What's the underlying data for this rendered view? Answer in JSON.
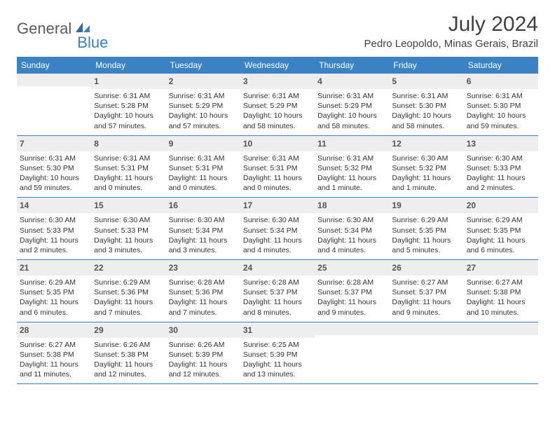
{
  "brand": {
    "general": "General",
    "blue": "Blue"
  },
  "title": "July 2024",
  "location": "Pedro Leopoldo, Minas Gerais, Brazil",
  "colors": {
    "accent": "#3b82c4",
    "text": "#404040",
    "cellbg": "#eeeeee"
  },
  "weekdays": [
    "Sunday",
    "Monday",
    "Tuesday",
    "Wednesday",
    "Thursday",
    "Friday",
    "Saturday"
  ],
  "layout": {
    "first_weekday_index": 1,
    "days_in_month": 31
  },
  "days": {
    "1": {
      "sunrise": "Sunrise: 6:31 AM",
      "sunset": "Sunset: 5:28 PM",
      "day1": "Daylight: 10 hours",
      "day2": "and 57 minutes."
    },
    "2": {
      "sunrise": "Sunrise: 6:31 AM",
      "sunset": "Sunset: 5:29 PM",
      "day1": "Daylight: 10 hours",
      "day2": "and 57 minutes."
    },
    "3": {
      "sunrise": "Sunrise: 6:31 AM",
      "sunset": "Sunset: 5:29 PM",
      "day1": "Daylight: 10 hours",
      "day2": "and 58 minutes."
    },
    "4": {
      "sunrise": "Sunrise: 6:31 AM",
      "sunset": "Sunset: 5:29 PM",
      "day1": "Daylight: 10 hours",
      "day2": "and 58 minutes."
    },
    "5": {
      "sunrise": "Sunrise: 6:31 AM",
      "sunset": "Sunset: 5:30 PM",
      "day1": "Daylight: 10 hours",
      "day2": "and 58 minutes."
    },
    "6": {
      "sunrise": "Sunrise: 6:31 AM",
      "sunset": "Sunset: 5:30 PM",
      "day1": "Daylight: 10 hours",
      "day2": "and 59 minutes."
    },
    "7": {
      "sunrise": "Sunrise: 6:31 AM",
      "sunset": "Sunset: 5:30 PM",
      "day1": "Daylight: 10 hours",
      "day2": "and 59 minutes."
    },
    "8": {
      "sunrise": "Sunrise: 6:31 AM",
      "sunset": "Sunset: 5:31 PM",
      "day1": "Daylight: 11 hours",
      "day2": "and 0 minutes."
    },
    "9": {
      "sunrise": "Sunrise: 6:31 AM",
      "sunset": "Sunset: 5:31 PM",
      "day1": "Daylight: 11 hours",
      "day2": "and 0 minutes."
    },
    "10": {
      "sunrise": "Sunrise: 6:31 AM",
      "sunset": "Sunset: 5:31 PM",
      "day1": "Daylight: 11 hours",
      "day2": "and 0 minutes."
    },
    "11": {
      "sunrise": "Sunrise: 6:31 AM",
      "sunset": "Sunset: 5:32 PM",
      "day1": "Daylight: 11 hours",
      "day2": "and 1 minute."
    },
    "12": {
      "sunrise": "Sunrise: 6:30 AM",
      "sunset": "Sunset: 5:32 PM",
      "day1": "Daylight: 11 hours",
      "day2": "and 1 minute."
    },
    "13": {
      "sunrise": "Sunrise: 6:30 AM",
      "sunset": "Sunset: 5:33 PM",
      "day1": "Daylight: 11 hours",
      "day2": "and 2 minutes."
    },
    "14": {
      "sunrise": "Sunrise: 6:30 AM",
      "sunset": "Sunset: 5:33 PM",
      "day1": "Daylight: 11 hours",
      "day2": "and 2 minutes."
    },
    "15": {
      "sunrise": "Sunrise: 6:30 AM",
      "sunset": "Sunset: 5:33 PM",
      "day1": "Daylight: 11 hours",
      "day2": "and 3 minutes."
    },
    "16": {
      "sunrise": "Sunrise: 6:30 AM",
      "sunset": "Sunset: 5:34 PM",
      "day1": "Daylight: 11 hours",
      "day2": "and 3 minutes."
    },
    "17": {
      "sunrise": "Sunrise: 6:30 AM",
      "sunset": "Sunset: 5:34 PM",
      "day1": "Daylight: 11 hours",
      "day2": "and 4 minutes."
    },
    "18": {
      "sunrise": "Sunrise: 6:30 AM",
      "sunset": "Sunset: 5:34 PM",
      "day1": "Daylight: 11 hours",
      "day2": "and 4 minutes."
    },
    "19": {
      "sunrise": "Sunrise: 6:29 AM",
      "sunset": "Sunset: 5:35 PM",
      "day1": "Daylight: 11 hours",
      "day2": "and 5 minutes."
    },
    "20": {
      "sunrise": "Sunrise: 6:29 AM",
      "sunset": "Sunset: 5:35 PM",
      "day1": "Daylight: 11 hours",
      "day2": "and 6 minutes."
    },
    "21": {
      "sunrise": "Sunrise: 6:29 AM",
      "sunset": "Sunset: 5:35 PM",
      "day1": "Daylight: 11 hours",
      "day2": "and 6 minutes."
    },
    "22": {
      "sunrise": "Sunrise: 6:29 AM",
      "sunset": "Sunset: 5:36 PM",
      "day1": "Daylight: 11 hours",
      "day2": "and 7 minutes."
    },
    "23": {
      "sunrise": "Sunrise: 6:28 AM",
      "sunset": "Sunset: 5:36 PM",
      "day1": "Daylight: 11 hours",
      "day2": "and 7 minutes."
    },
    "24": {
      "sunrise": "Sunrise: 6:28 AM",
      "sunset": "Sunset: 5:37 PM",
      "day1": "Daylight: 11 hours",
      "day2": "and 8 minutes."
    },
    "25": {
      "sunrise": "Sunrise: 6:28 AM",
      "sunset": "Sunset: 5:37 PM",
      "day1": "Daylight: 11 hours",
      "day2": "and 9 minutes."
    },
    "26": {
      "sunrise": "Sunrise: 6:27 AM",
      "sunset": "Sunset: 5:37 PM",
      "day1": "Daylight: 11 hours",
      "day2": "and 9 minutes."
    },
    "27": {
      "sunrise": "Sunrise: 6:27 AM",
      "sunset": "Sunset: 5:38 PM",
      "day1": "Daylight: 11 hours",
      "day2": "and 10 minutes."
    },
    "28": {
      "sunrise": "Sunrise: 6:27 AM",
      "sunset": "Sunset: 5:38 PM",
      "day1": "Daylight: 11 hours",
      "day2": "and 11 minutes."
    },
    "29": {
      "sunrise": "Sunrise: 6:26 AM",
      "sunset": "Sunset: 5:38 PM",
      "day1": "Daylight: 11 hours",
      "day2": "and 12 minutes."
    },
    "30": {
      "sunrise": "Sunrise: 6:26 AM",
      "sunset": "Sunset: 5:39 PM",
      "day1": "Daylight: 11 hours",
      "day2": "and 12 minutes."
    },
    "31": {
      "sunrise": "Sunrise: 6:25 AM",
      "sunset": "Sunset: 5:39 PM",
      "day1": "Daylight: 11 hours",
      "day2": "and 13 minutes."
    }
  }
}
